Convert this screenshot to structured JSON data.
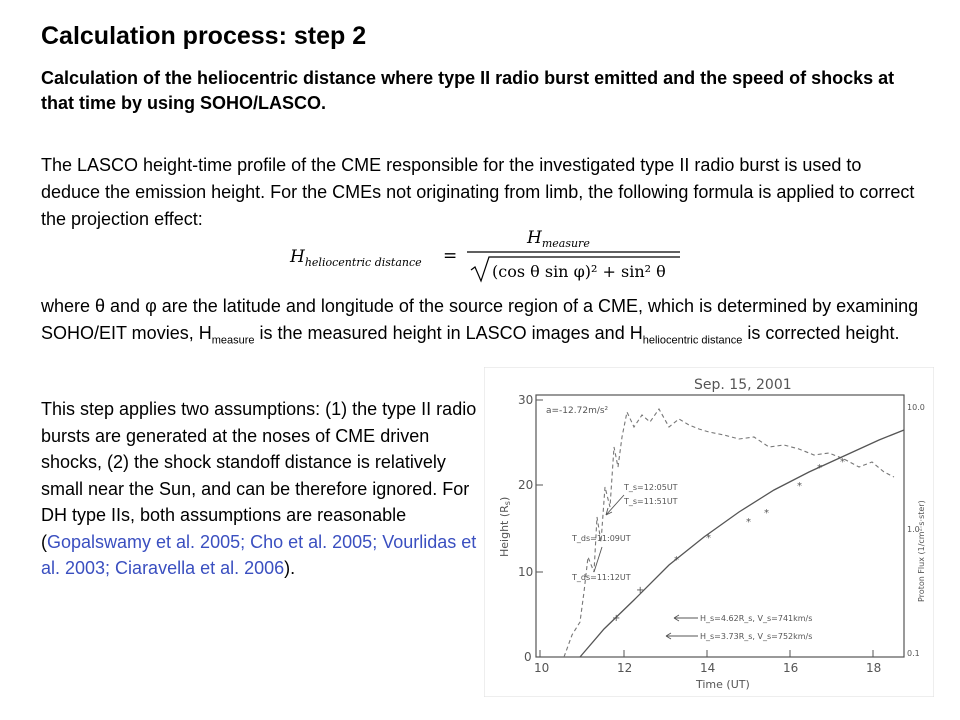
{
  "title": "Calculation process: step 2",
  "subtitle": "Calculation of the heliocentric distance where type II radio burst emitted and the speed of shocks at that time by using SOHO/LASCO.",
  "para1": "The LASCO height-time profile of the CME responsible for the investigated type II radio burst is used to deduce the emission height. For the CMEs not originating from limb, the following formula is applied to correct the projection effect:",
  "formula": {
    "lhs": "H",
    "lhs_sub": "heliocentric distance",
    "equals": "=",
    "numerator": "H",
    "numerator_sub": "measure",
    "denominator": "(cos θ sin φ)² + sin² θ"
  },
  "para2": {
    "p1": "where θ and φ are the latitude and longitude of the source region of a CME, which is determined by examining SOHO/EIT movies, H",
    "sub1": "measure",
    "p2": " is the measured height in LASCO images and H",
    "sub2": "heliocentric distance",
    "p3": " is corrected height."
  },
  "para3": {
    "text": "This step applies two assumptions: (1) the type II radio bursts are generated at the noses of CME driven shocks, (2) the shock standoff distance is relatively small near the Sun, and can be therefore ignored. For DH type IIs, both assumptions are reasonable (",
    "citations": "Gopalswamy et al. 2005; Cho et al. 2005; Vourlidas et al. 2003; Ciaravella et al. 2006",
    "end": ")."
  },
  "figure": {
    "title": "Sep. 15, 2001",
    "xlabel": "Time (UT)",
    "ylabel": "Height (R",
    "ylabel_sub": "s",
    "ylabel_end": ")",
    "y2label": "Proton Flux (1/cm²·s·ster)",
    "xticks": [
      "10",
      "12",
      "14",
      "16",
      "18"
    ],
    "yticks": [
      "0",
      "10",
      "20",
      "30"
    ],
    "y2ticks": [
      "10.0",
      "1.0",
      "0.1"
    ],
    "accel": "a=-12.72m/s²",
    "annotations": [
      "T_s=12:05UT",
      "T_s=11:51UT",
      "T_ds=11:09UT",
      "T_ds=11:12UT"
    ],
    "ann1": "H_s=4.62R_s, V_s=741km/s",
    "ann2": "H_s=3.73R_s, V_s=752km/s"
  }
}
